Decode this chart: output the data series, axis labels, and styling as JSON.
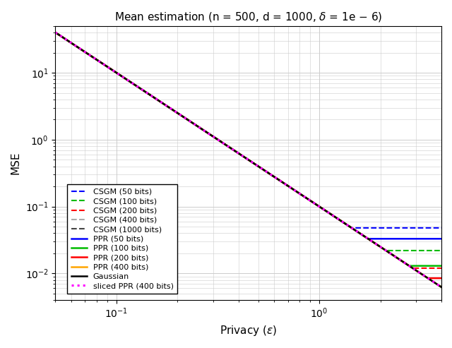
{
  "title": "Mean estimation (n = 500, d = 1000, $\\delta$ = 1e $-$ 6)",
  "xlabel": "Privacy ($\\varepsilon$)",
  "ylabel": "MSE",
  "xlim": [
    0.05,
    4.0
  ],
  "ylim": [
    0.004,
    50
  ],
  "C_gauss": 0.1,
  "csgm": {
    "bits": [
      50,
      100,
      200,
      400,
      1000
    ],
    "floors": [
      0.048,
      0.022,
      0.012,
      0.0065,
      0.0032
    ],
    "colors": [
      "#0000FF",
      "#00BB00",
      "#FF0000",
      "#AAAAAA",
      "#444444"
    ]
  },
  "ppr": {
    "bits": [
      50,
      100,
      200,
      400
    ],
    "floors": [
      0.033,
      0.013,
      0.0085,
      0.0048
    ],
    "colors": [
      "#0000FF",
      "#00BB00",
      "#FF0000",
      "#FFA500"
    ]
  },
  "sliced_ppr_floor": 0.006,
  "sliced_ppr_color": "#FF00FF",
  "gauss_color": "#000000",
  "legend_fontsize": 8,
  "grid_color": "#CCCCCC",
  "title_fontsize": 11,
  "axis_fontsize": 11
}
